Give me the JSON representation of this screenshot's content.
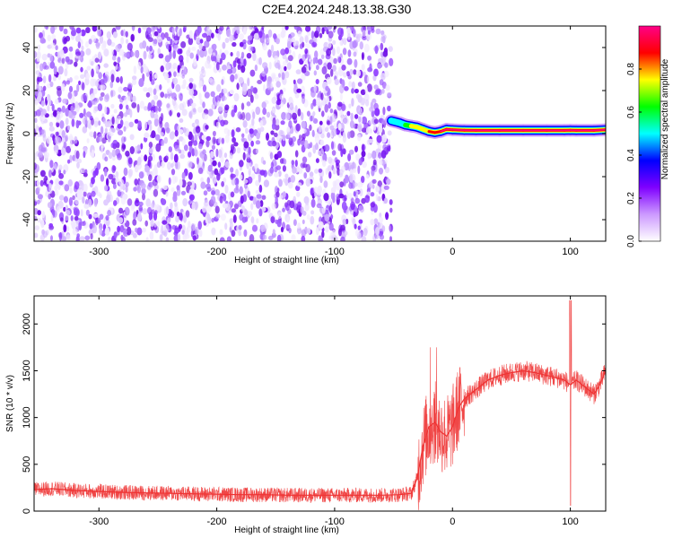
{
  "figure": {
    "title": "C2E4.2024.248.13.38.G30"
  },
  "chart_data": [
    {
      "type": "heatmap",
      "xlabel": "Height of straight line (km)",
      "ylabel": "Frequency (Hz)",
      "xlim": [
        -355,
        130
      ],
      "ylim": [
        -50,
        50
      ],
      "xticks": [
        -300,
        -200,
        -100,
        0,
        100
      ],
      "yticks": [
        -40,
        -20,
        0,
        20,
        40
      ],
      "noise_region": {
        "x_range": [
          -355,
          -52
        ],
        "description_level": "random low amplitude"
      },
      "signal_trace": {
        "x": [
          -52,
          -45,
          -40,
          -35,
          -30,
          -25,
          -20,
          -15,
          -10,
          -5,
          0,
          10,
          20,
          40,
          60,
          80,
          95,
          100,
          105,
          120,
          130
        ],
        "y": [
          6,
          5,
          4,
          3.5,
          3,
          2,
          1,
          0.5,
          1,
          2,
          1.8,
          1.6,
          1.5,
          1.5,
          1.5,
          1.5,
          1.5,
          1.6,
          1.5,
          1.5,
          1.8
        ],
        "amplitude": [
          0.45,
          0.55,
          0.6,
          0.7,
          0.75,
          0.8,
          0.85,
          0.9,
          0.95,
          0.95,
          0.95,
          0.95,
          0.95,
          0.95,
          0.95,
          0.95,
          0.95,
          0.95,
          0.95,
          0.95,
          0.95
        ]
      },
      "colorbar": {
        "label": "Normalized spectral amplitude",
        "range": [
          0,
          1
        ],
        "ticks": [
          "0.0",
          "0.2",
          "0.4",
          "0.6",
          "0.8"
        ],
        "colors": [
          "#ffffff",
          "#cc99ff",
          "#7f00ff",
          "#0000ff",
          "#00ffff",
          "#00ff00",
          "#ffff00",
          "#ff0000",
          "#ff0088"
        ]
      }
    },
    {
      "type": "line",
      "xlabel": "Height of straight line (km)",
      "ylabel": "SNR (10 * v/v)",
      "xlim": [
        -355,
        130
      ],
      "ylim": [
        0,
        2300
      ],
      "xticks": [
        -300,
        -200,
        -100,
        0,
        100
      ],
      "yticks": [
        0,
        500,
        1000,
        1500,
        2000
      ],
      "series": [
        {
          "color": "#ee3333",
          "x": [
            -355,
            -340,
            -320,
            -300,
            -280,
            -260,
            -240,
            -220,
            -200,
            -180,
            -160,
            -140,
            -120,
            -100,
            -80,
            -60,
            -45,
            -35,
            -30,
            -25,
            -20,
            -15,
            -10,
            -5,
            0,
            5,
            10,
            15,
            20,
            30,
            40,
            50,
            60,
            70,
            80,
            90,
            95,
            100,
            105,
            110,
            115,
            120,
            125,
            130
          ],
          "values": [
            230,
            240,
            220,
            210,
            200,
            195,
            190,
            185,
            180,
            175,
            175,
            170,
            170,
            170,
            170,
            170,
            175,
            190,
            350,
            700,
            900,
            950,
            850,
            800,
            900,
            1100,
            1200,
            1250,
            1300,
            1400,
            1450,
            1480,
            1500,
            1480,
            1450,
            1420,
            1400,
            1350,
            1400,
            1350,
            1300,
            1250,
            1350,
            1500
          ]
        }
      ]
    }
  ]
}
